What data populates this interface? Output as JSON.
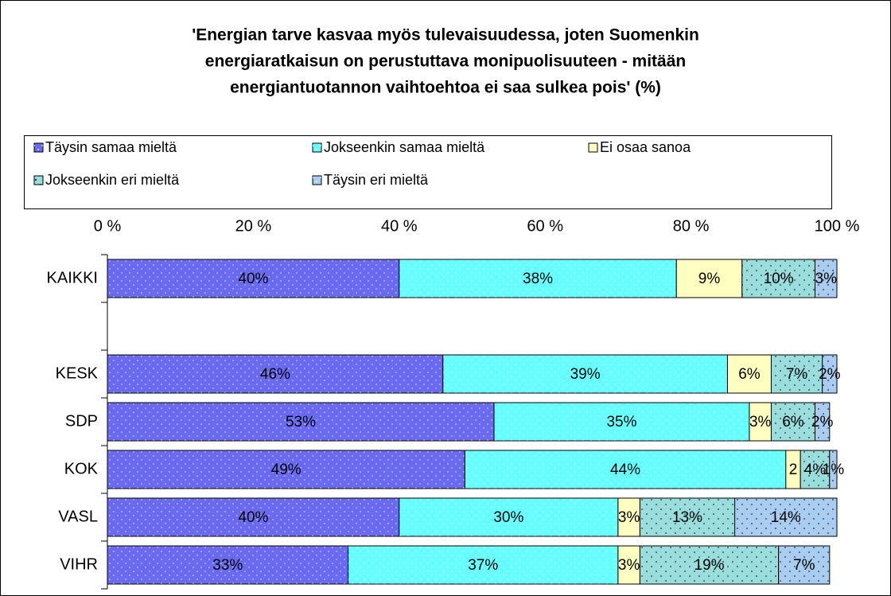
{
  "chart_data": {
    "type": "stacked-bar",
    "orientation": "horizontal",
    "title": [
      "'Energian tarve kasvaa myös tulevaisuudessa, joten Suomenkin",
      "energiaratkaisun on perustuttava monipuolisuuteen - mitään",
      "energiantuotannon vaihtoehtoa ei saa sulkea pois' (%)"
    ],
    "categories": [
      "KAIKKI",
      null,
      "KESK",
      "SDP",
      "KOK",
      "VASL",
      "VIHR"
    ],
    "series": [
      {
        "name": "Täysin samaa mieltä",
        "color": "#6a6af0",
        "values": [
          40,
          null,
          46,
          53,
          49,
          40,
          33
        ],
        "value_labels": [
          "40%",
          null,
          "46%",
          "53%",
          "49%",
          "40%",
          "33%"
        ]
      },
      {
        "name": "Jokseenkin samaa mieltä",
        "color": "#66ffff",
        "values": [
          38,
          null,
          39,
          35,
          44,
          30,
          37
        ],
        "value_labels": [
          "38%",
          null,
          "39%",
          "35%",
          "44%",
          "30%",
          "37%"
        ]
      },
      {
        "name": "Ei osaa sanoa",
        "color": "#ffffc0",
        "values": [
          9,
          null,
          6,
          3,
          2,
          3,
          3
        ],
        "value_labels": [
          "9%",
          null,
          "6%",
          "3%",
          "2",
          "3%",
          "3%"
        ]
      },
      {
        "name": "Jokseenkin eri mieltä",
        "color": "#99dddd",
        "values": [
          10,
          null,
          7,
          6,
          4,
          13,
          19
        ],
        "value_labels": [
          "10%",
          null,
          "7%",
          "6%",
          "4%",
          "13%",
          "19%"
        ]
      },
      {
        "name": "Täysin eri mieltä",
        "color": "#a8cdf0",
        "values": [
          3,
          null,
          2,
          2,
          1,
          14,
          7
        ],
        "value_labels": [
          "3%",
          null,
          "2%",
          "2%",
          "1%",
          "14%",
          "7%"
        ]
      }
    ],
    "xlim": [
      0,
      100
    ],
    "xticks": [
      {
        "value": 0,
        "label": "0 %"
      },
      {
        "value": 20,
        "label": "20 %"
      },
      {
        "value": 40,
        "label": "40 %"
      },
      {
        "value": 60,
        "label": "60 %"
      },
      {
        "value": 80,
        "label": "80 %"
      },
      {
        "value": 100,
        "label": "100 %"
      }
    ],
    "legend": "top"
  }
}
